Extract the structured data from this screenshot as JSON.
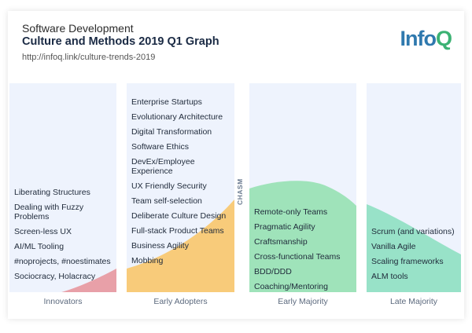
{
  "header": {
    "subtitle": "Software Development",
    "title": "Culture and Methods 2019 Q1 Graph",
    "url": "http://infoq.link/culture-trends-2019"
  },
  "logo": {
    "part1": "Info",
    "part2": "Q",
    "color1": "#2f79ae",
    "color2": "#3bb273"
  },
  "chasm_label": "CHASM",
  "chart_data": {
    "type": "table",
    "title": "Culture and Methods 2019 Q1 Graph",
    "categories": [
      "Innovators",
      "Early Adopters",
      "Early Majority",
      "Late Majority"
    ],
    "colors": [
      "#e8a0a8",
      "#f8cb7a",
      "#9fe3ba",
      "#98e2c8"
    ],
    "columns": [
      {
        "label": "Innovators",
        "items": [
          "Liberating Structures",
          "Dealing with Fuzzy Problems",
          "Screen-less UX",
          "AI/ML Tooling",
          "#noprojects, #noestimates",
          "Sociocracy, Holacracy"
        ]
      },
      {
        "label": "Early Adopters",
        "items": [
          "Enterprise Startups",
          "Evolutionary Architecture",
          "Digital Transformation",
          "Software Ethics",
          "DevEx/Employee Experience",
          "UX Friendly Security",
          "Team self-selection",
          "Deliberate Culture Design",
          "Full-stack Product Teams",
          "Business Agility",
          "Mobbing"
        ]
      },
      {
        "label": "Early Majority",
        "items": [
          "Remote-only Teams",
          "Pragmatic Agility",
          "Craftsmanship",
          "Cross-functional Teams",
          "BDD/DDD",
          "Coaching/Mentoring"
        ]
      },
      {
        "label": "Late Majority",
        "items": [
          "Scrum (and variations)",
          "Vanilla Agile",
          "Scaling frameworks",
          "ALM tools"
        ]
      }
    ]
  }
}
